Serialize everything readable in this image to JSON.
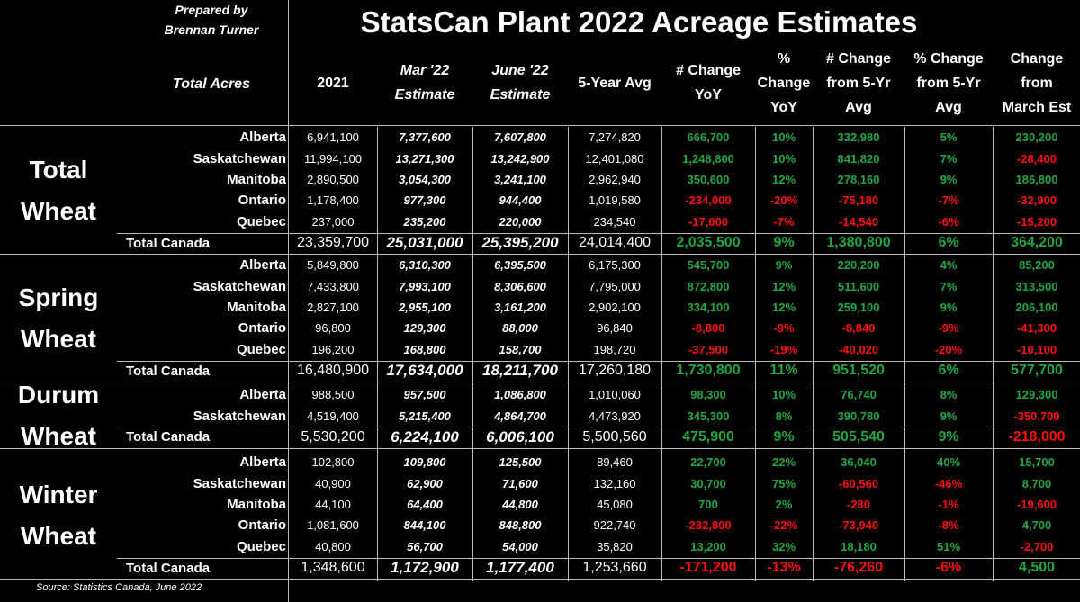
{
  "prepared_by": "Prepared by\nBrennan Turner",
  "title": "StatsCan Plant 2022 Acreage Estimates",
  "row_header": "Total Acres",
  "columns": [
    "2021",
    "Mar '22\nEstimate",
    "June '22\nEstimate",
    "5-Year Avg",
    "# Change\nYoY",
    "%\nChange\nYoY",
    "# Change\nfrom 5-Yr\nAvg",
    "% Change\nfrom 5-Yr\nAvg",
    "Change\nfrom\nMarch Est"
  ],
  "sections": [
    {
      "label": "Total\nWheat",
      "rows": [
        {
          "name": "Alberta",
          "values": [
            "6,941,100",
            "7,377,600",
            "7,607,800",
            "7,274,820",
            "666,700",
            "10%",
            "332,980",
            "5%",
            "230,200"
          ]
        },
        {
          "name": "Saskatchewan",
          "values": [
            "11,994,100",
            "13,271,300",
            "13,242,900",
            "12,401,080",
            "1,248,800",
            "10%",
            "841,820",
            "7%",
            "-28,400"
          ]
        },
        {
          "name": "Manitoba",
          "values": [
            "2,890,500",
            "3,054,300",
            "3,241,100",
            "2,962,940",
            "350,600",
            "12%",
            "278,160",
            "9%",
            "186,800"
          ]
        },
        {
          "name": "Ontario",
          "values": [
            "1,178,400",
            "977,300",
            "944,400",
            "1,019,580",
            "-234,000",
            "-20%",
            "-75,180",
            "-7%",
            "-32,900"
          ]
        },
        {
          "name": "Quebec",
          "values": [
            "237,000",
            "235,200",
            "220,000",
            "234,540",
            "-17,000",
            "-7%",
            "-14,540",
            "-6%",
            "-15,200"
          ]
        }
      ],
      "total": {
        "name": "Total Canada",
        "values": [
          "23,359,700",
          "25,031,000",
          "25,395,200",
          "24,014,400",
          "2,035,500",
          "9%",
          "1,380,800",
          "6%",
          "364,200"
        ]
      }
    },
    {
      "label": "Spring\nWheat",
      "rows": [
        {
          "name": "Alberta",
          "values": [
            "5,849,800",
            "6,310,300",
            "6,395,500",
            "6,175,300",
            "545,700",
            "9%",
            "220,200",
            "4%",
            "85,200"
          ]
        },
        {
          "name": "Saskatchewan",
          "values": [
            "7,433,800",
            "7,993,100",
            "8,306,600",
            "7,795,000",
            "872,800",
            "12%",
            "511,600",
            "7%",
            "313,500"
          ]
        },
        {
          "name": "Manitoba",
          "values": [
            "2,827,100",
            "2,955,100",
            "3,161,200",
            "2,902,100",
            "334,100",
            "12%",
            "259,100",
            "9%",
            "206,100"
          ]
        },
        {
          "name": "Ontario",
          "values": [
            "96,800",
            "129,300",
            "88,000",
            "96,840",
            "-8,800",
            "-9%",
            "-8,840",
            "-9%",
            "-41,300"
          ]
        },
        {
          "name": "Quebec",
          "values": [
            "196,200",
            "168,800",
            "158,700",
            "198,720",
            "-37,500",
            "-19%",
            "-40,020",
            "-20%",
            "-10,100"
          ]
        }
      ],
      "total": {
        "name": "Total Canada",
        "values": [
          "16,480,900",
          "17,634,000",
          "18,211,700",
          "17,260,180",
          "1,730,800",
          "11%",
          "951,520",
          "6%",
          "577,700"
        ]
      }
    },
    {
      "label": "Durum\nWheat",
      "rows": [
        {
          "name": "Alberta",
          "values": [
            "988,500",
            "957,500",
            "1,086,800",
            "1,010,060",
            "98,300",
            "10%",
            "76,740",
            "8%",
            "129,300"
          ]
        },
        {
          "name": "Saskatchewan",
          "values": [
            "4,519,400",
            "5,215,400",
            "4,864,700",
            "4,473,920",
            "345,300",
            "8%",
            "390,780",
            "9%",
            "-350,700"
          ]
        }
      ],
      "total": {
        "name": "Total Canada",
        "values": [
          "5,530,200",
          "6,224,100",
          "6,006,100",
          "5,500,560",
          "475,900",
          "9%",
          "505,540",
          "9%",
          "-218,000"
        ]
      }
    },
    {
      "label": "Winter\nWheat",
      "rows": [
        {
          "name": "Alberta",
          "values": [
            "102,800",
            "109,800",
            "125,500",
            "89,460",
            "22,700",
            "22%",
            "36,040",
            "40%",
            "15,700"
          ]
        },
        {
          "name": "Saskatchewan",
          "values": [
            "40,900",
            "62,900",
            "71,600",
            "132,160",
            "30,700",
            "75%",
            "-60,560",
            "-46%",
            "8,700"
          ]
        },
        {
          "name": "Manitoba",
          "values": [
            "44,100",
            "64,400",
            "44,800",
            "45,080",
            "700",
            "2%",
            "-280",
            "-1%",
            "-19,600"
          ]
        },
        {
          "name": "Ontario",
          "values": [
            "1,081,600",
            "844,100",
            "848,800",
            "922,740",
            "-232,800",
            "-22%",
            "-73,940",
            "-8%",
            "4,700"
          ]
        },
        {
          "name": "Quebec",
          "values": [
            "40,800",
            "56,700",
            "54,000",
            "35,820",
            "13,200",
            "32%",
            "18,180",
            "51%",
            "-2,700"
          ]
        }
      ],
      "total": {
        "name": "Total Canada",
        "values": [
          "1,348,600",
          "1,172,900",
          "1,177,400",
          "1,253,660",
          "-171,200",
          "-13%",
          "-76,260",
          "-6%",
          "4,500"
        ]
      }
    }
  ],
  "source": "Source: Statistics Canada, June 2022",
  "colors": {
    "positive": "#22a744",
    "negative": "#ff1010",
    "background": "#000000",
    "text": "#ffffff"
  }
}
